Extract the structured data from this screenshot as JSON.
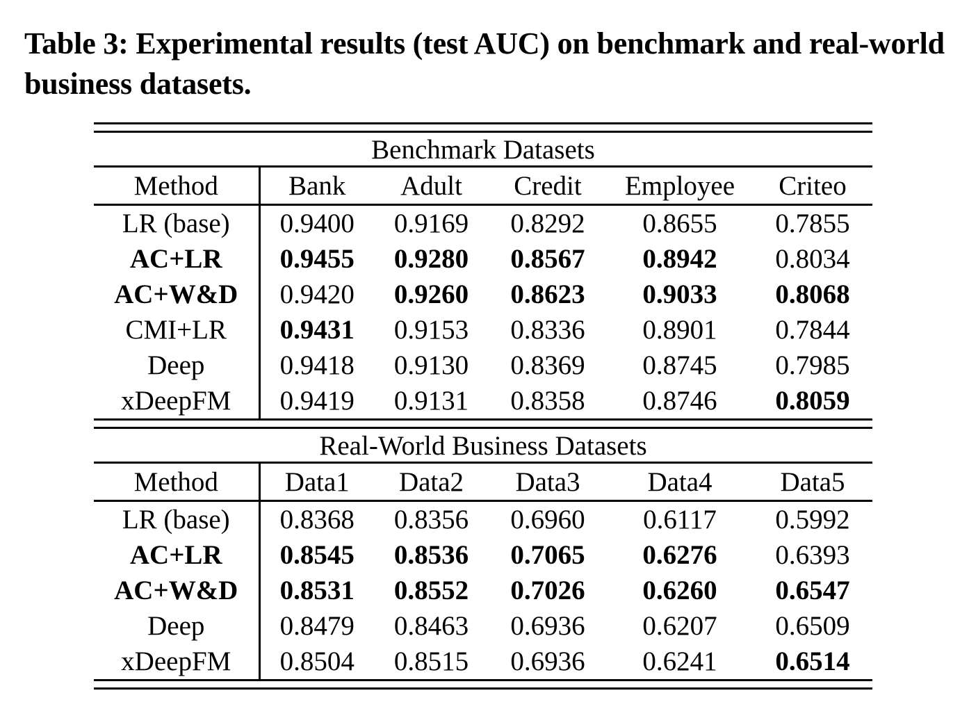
{
  "page": {
    "background_color": "#ffffff",
    "text_color": "#000000",
    "rule_color": "#000000"
  },
  "caption": "Table 3: Experimental results (test AUC) on benchmark and real-world business datasets.",
  "tables": [
    {
      "section_title": "Benchmark Datasets",
      "columns": [
        "Method",
        "Bank",
        "Adult",
        "Credit",
        "Employee",
        "Criteo"
      ],
      "rows": [
        {
          "method": "LR (base)",
          "method_bold": false,
          "values": [
            "0.9400",
            "0.9169",
            "0.8292",
            "0.8655",
            "0.7855"
          ],
          "bold": [
            false,
            false,
            false,
            false,
            false
          ]
        },
        {
          "method": "AC+LR",
          "method_bold": true,
          "values": [
            "0.9455",
            "0.9280",
            "0.8567",
            "0.8942",
            "0.8034"
          ],
          "bold": [
            true,
            true,
            true,
            true,
            false
          ]
        },
        {
          "method": "AC+W&D",
          "method_bold": true,
          "values": [
            "0.9420",
            "0.9260",
            "0.8623",
            "0.9033",
            "0.8068"
          ],
          "bold": [
            false,
            true,
            true,
            true,
            true
          ]
        },
        {
          "method": "CMI+LR",
          "method_bold": false,
          "values": [
            "0.9431",
            "0.9153",
            "0.8336",
            "0.8901",
            "0.7844"
          ],
          "bold": [
            true,
            false,
            false,
            false,
            false
          ]
        },
        {
          "method": "Deep",
          "method_bold": false,
          "values": [
            "0.9418",
            "0.9130",
            "0.8369",
            "0.8745",
            "0.7985"
          ],
          "bold": [
            false,
            false,
            false,
            false,
            false
          ]
        },
        {
          "method": "xDeepFM",
          "method_bold": false,
          "values": [
            "0.9419",
            "0.9131",
            "0.8358",
            "0.8746",
            "0.8059"
          ],
          "bold": [
            false,
            false,
            false,
            false,
            true
          ]
        }
      ]
    },
    {
      "section_title": "Real-World Business Datasets",
      "columns": [
        "Method",
        "Data1",
        "Data2",
        "Data3",
        "Data4",
        "Data5"
      ],
      "rows": [
        {
          "method": "LR (base)",
          "method_bold": false,
          "values": [
            "0.8368",
            "0.8356",
            "0.6960",
            "0.6117",
            "0.5992"
          ],
          "bold": [
            false,
            false,
            false,
            false,
            false
          ]
        },
        {
          "method": "AC+LR",
          "method_bold": true,
          "values": [
            "0.8545",
            "0.8536",
            "0.7065",
            "0.6276",
            "0.6393"
          ],
          "bold": [
            true,
            true,
            true,
            true,
            false
          ]
        },
        {
          "method": "AC+W&D",
          "method_bold": true,
          "values": [
            "0.8531",
            "0.8552",
            "0.7026",
            "0.6260",
            "0.6547"
          ],
          "bold": [
            true,
            true,
            true,
            true,
            true
          ]
        },
        {
          "method": "Deep",
          "method_bold": false,
          "values": [
            "0.8479",
            "0.8463",
            "0.6936",
            "0.6207",
            "0.6509"
          ],
          "bold": [
            false,
            false,
            false,
            false,
            false
          ]
        },
        {
          "method": "xDeepFM",
          "method_bold": false,
          "values": [
            "0.8504",
            "0.8515",
            "0.6936",
            "0.6241",
            "0.6514"
          ],
          "bold": [
            false,
            false,
            false,
            false,
            true
          ]
        }
      ]
    }
  ]
}
